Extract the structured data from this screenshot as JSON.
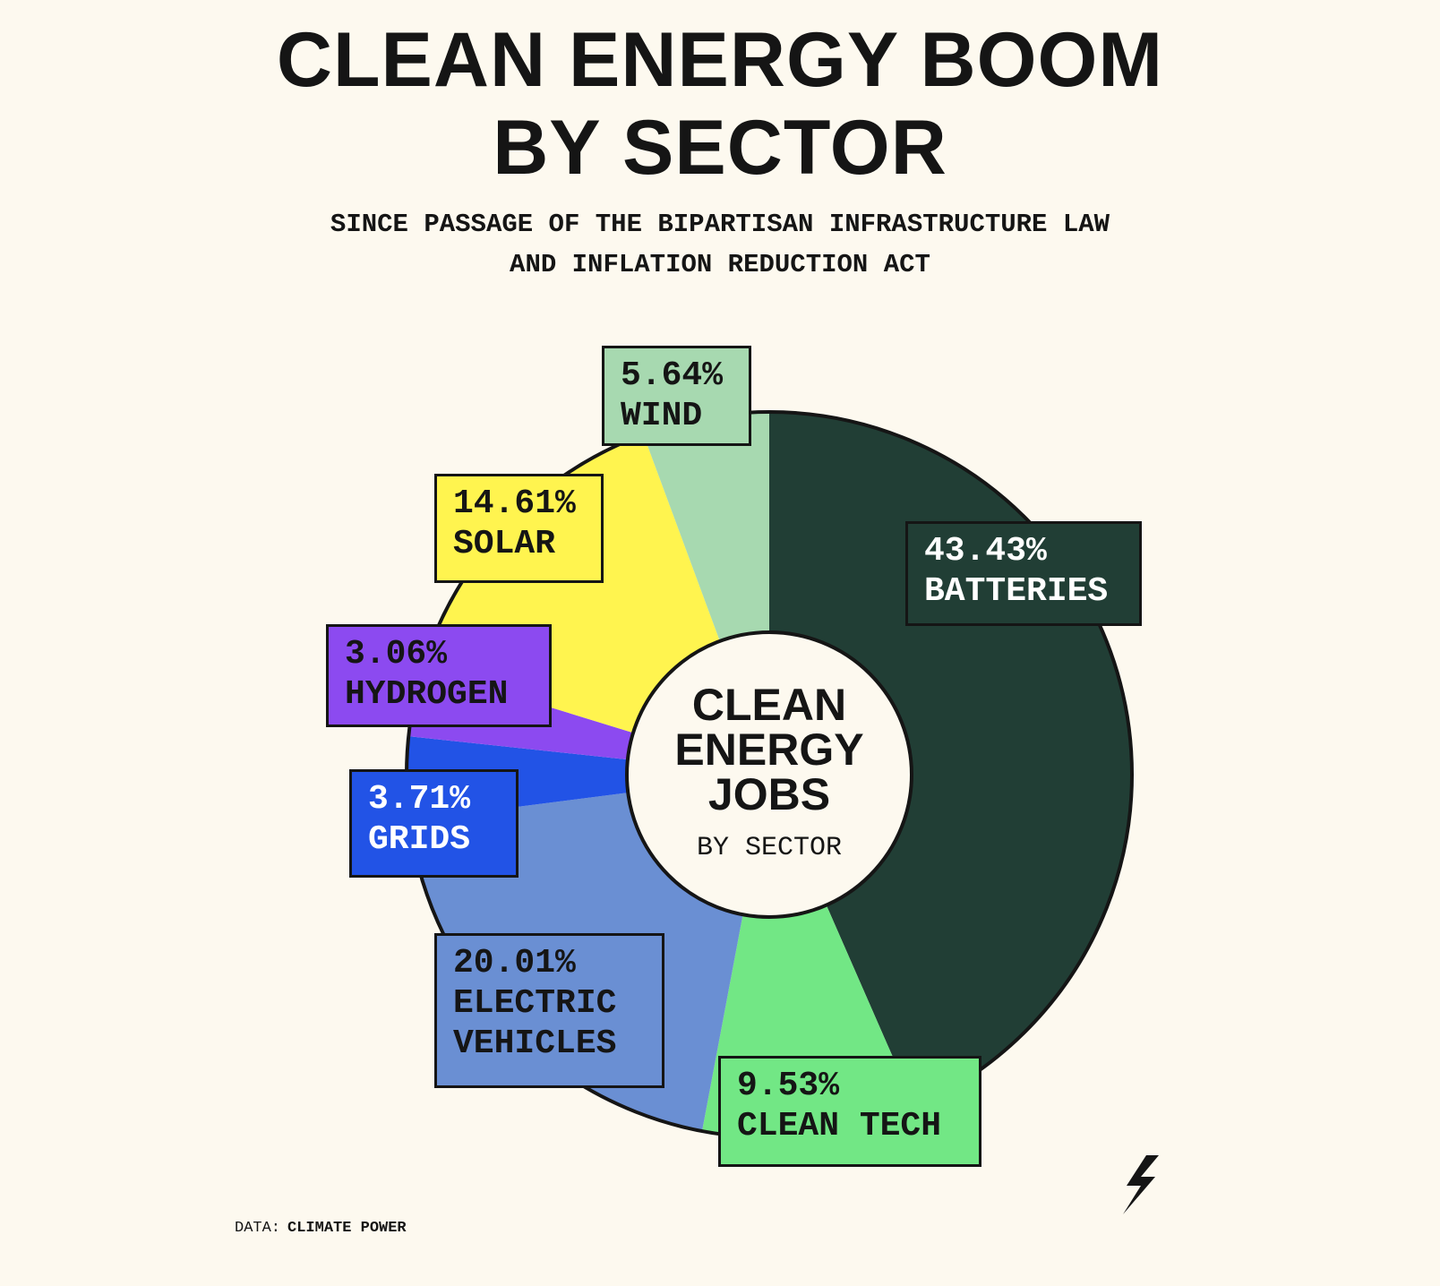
{
  "chart_data": {
    "type": "pie",
    "title": "CLEAN ENERGY BOOM BY SECTOR",
    "subtitle": "SINCE PASSAGE OF THE BIPARTISAN INFRASTRUCTURE LAW AND INFLATION REDUCTION ACT",
    "center_title": "CLEAN ENERGY JOBS",
    "center_subtitle": "BY SECTOR",
    "source_label": "DATA:",
    "source": "CLIMATE POWER",
    "categories": [
      "BATTERIES",
      "CLEAN TECH",
      "ELECTRIC VEHICLES",
      "GRIDS",
      "HYDROGEN",
      "SOLAR",
      "WIND"
    ],
    "values": [
      43.43,
      9.53,
      20.01,
      3.71,
      3.06,
      14.61,
      5.64
    ],
    "value_labels": [
      "43.43%",
      "9.53%",
      "20.01%",
      "3.71%",
      "3.06%",
      "14.61%",
      "5.64%"
    ],
    "colors": [
      "#213e35",
      "#72e785",
      "#6a8fd3",
      "#2253e6",
      "#8c4af0",
      "#fff44f",
      "#a7d9b0"
    ]
  }
}
